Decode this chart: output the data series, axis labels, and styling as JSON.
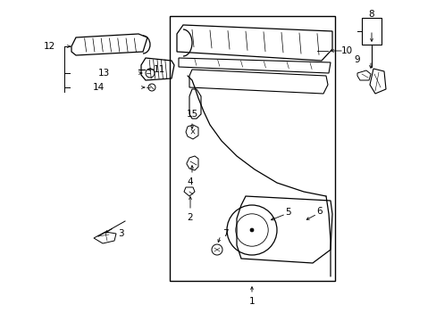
{
  "background_color": "#ffffff",
  "line_color": "#000000",
  "fig_width": 4.89,
  "fig_height": 3.6,
  "dpi": 100,
  "label_fontsize": 7.5
}
